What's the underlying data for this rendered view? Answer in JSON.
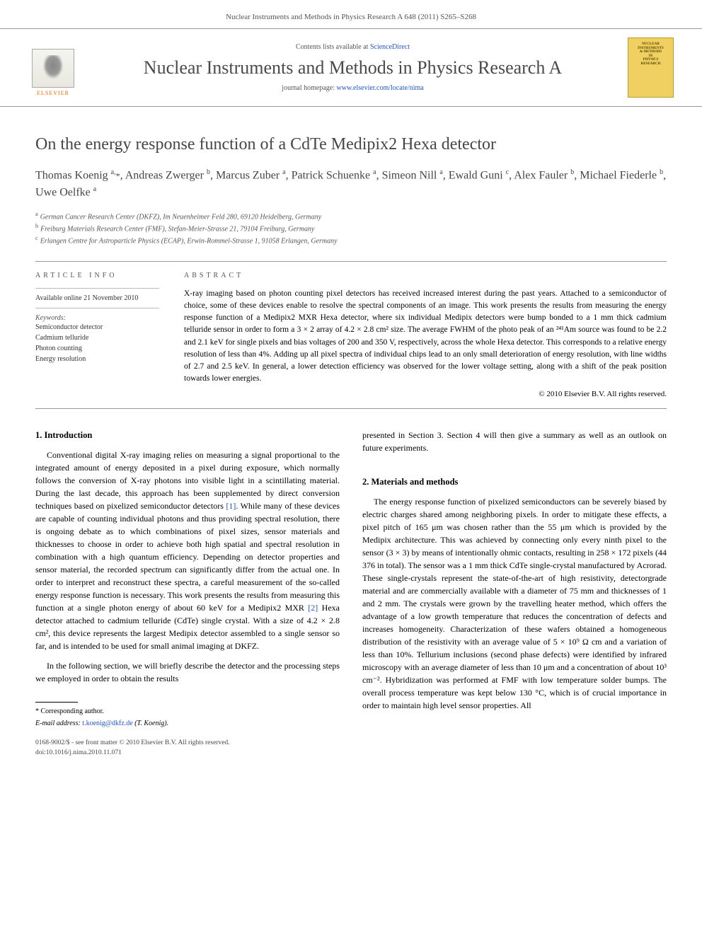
{
  "header": {
    "running_head": "Nuclear Instruments and Methods in Physics Research A 648 (2011) S265–S268"
  },
  "banner": {
    "contents_prefix": "Contents lists available at ",
    "contents_link": "ScienceDirect",
    "journal_name": "Nuclear Instruments and Methods in Physics Research A",
    "homepage_prefix": "journal homepage: ",
    "homepage_link": "www.elsevier.com/locate/nima",
    "publisher": "ELSEVIER",
    "cover_lines": [
      "NUCLEAR",
      "INSTRUMENTS",
      "& METHODS",
      "IN",
      "PHYSICS",
      "RESEARCH"
    ]
  },
  "article": {
    "title": "On the energy response function of a CdTe Medipix2 Hexa detector",
    "authors_html": "Thomas Koenig <sup>a,</sup><span class='star'>*</span>, Andreas Zwerger <sup>b</sup>, Marcus Zuber <sup>a</sup>, Patrick Schuenke <sup>a</sup>, Simeon Nill <sup>a</sup>, Ewald Guni <sup>c</sup>, Alex Fauler <sup>b</sup>, Michael Fiederle <sup>b</sup>, Uwe Oelfke <sup>a</sup>",
    "affiliations": [
      {
        "sup": "a",
        "text": "German Cancer Research Center (DKFZ), Im Neuenheimer Feld 280, 69120 Heidelberg, Germany"
      },
      {
        "sup": "b",
        "text": "Freiburg Materials Research Center (FMF), Stefan-Meier-Strasse 21, 79104 Freiburg, Germany"
      },
      {
        "sup": "c",
        "text": "Erlangen Centre for Astroparticle Physics (ECAP), Erwin-Rommel-Strasse 1, 91058 Erlangen, Germany"
      }
    ]
  },
  "info": {
    "heading": "ARTICLE INFO",
    "available": "Available online 21 November 2010",
    "keywords_label": "Keywords:",
    "keywords": [
      "Semiconductor detector",
      "Cadmium telluride",
      "Photon counting",
      "Energy resolution"
    ]
  },
  "abstract": {
    "heading": "ABSTRACT",
    "text": "X-ray imaging based on photon counting pixel detectors has received increased interest during the past years. Attached to a semiconductor of choice, some of these devices enable to resolve the spectral components of an image. This work presents the results from measuring the energy response function of a Medipix2 MXR Hexa detector, where six individual Medipix detectors were bump bonded to a 1 mm thick cadmium telluride sensor in order to form a 3 × 2 array of 4.2 × 2.8 cm² size. The average FWHM of the photo peak of an ²⁴¹Am source was found to be 2.2 and 2.1 keV for single pixels and bias voltages of 200 and 350 V, respectively, across the whole Hexa detector. This corresponds to a relative energy resolution of less than 4%. Adding up all pixel spectra of individual chips lead to an only small deterioration of energy resolution, with line widths of 2.7 and 2.5 keV. In general, a lower detection efficiency was observed for the lower voltage setting, along with a shift of the peak position towards lower energies.",
    "copyright": "© 2010 Elsevier B.V. All rights reserved."
  },
  "sections": {
    "s1_heading": "1.  Introduction",
    "s1_p1": "Conventional digital X-ray imaging relies on measuring a signal proportional to the integrated amount of energy deposited in a pixel during exposure, which normally follows the conversion of X-ray photons into visible light in a scintillating material. During the last decade, this approach has been supplemented by direct conversion techniques based on pixelized semiconductor detectors [1]. While many of these devices are capable of counting individual photons and thus providing spectral resolution, there is ongoing debate as to which combinations of pixel sizes, sensor materials and thicknesses to choose in order to achieve both high spatial and spectral resolution in combination with a high quantum efficiency. Depending on detector properties and sensor material, the recorded spectrum can significantly differ from the actual one. In order to interpret and reconstruct these spectra, a careful measurement of the so-called energy response function is necessary. This work presents the results from measuring this function at a single photon energy of about 60 keV for a Medipix2 MXR [2] Hexa detector attached to cadmium telluride (CdTe) single crystal. With a size of 4.2 × 2.8 cm², this device represents the largest Medipix detector assembled to a single sensor so far, and is intended to be used for small animal imaging at DKFZ.",
    "s1_p2": "In the following section, we will briefly describe the detector and the processing steps we employed in order to obtain the results",
    "s1_p3_continuation": "presented in Section 3. Section 4 will then give a summary as well as an outlook on future experiments.",
    "s2_heading": "2.  Materials and methods",
    "s2_p1": "The energy response function of pixelized semiconductors can be severely biased by electric charges shared among neighboring pixels. In order to mitigate these effects, a pixel pitch of 165 μm was chosen rather than the 55 μm which is provided by the Medipix architecture. This was achieved by connecting only every ninth pixel to the sensor (3 × 3) by means of intentionally ohmic contacts, resulting in 258 × 172 pixels (44 376 in total). The sensor was a 1 mm thick CdTe single-crystal manufactured by Acrorad. These single-crystals represent the state-of-the-art of high resistivity, detectorgrade material and are commercially available with a diameter of 75 mm and thicknesses of 1 and 2 mm. The crystals were grown by the travelling heater method, which offers the advantage of a low growth temperature that reduces the concentration of defects and increases homogeneity. Characterization of these wafers obtained a homogeneous distribution of the resistivity with an average value of 5 × 10⁹ Ω cm and a variation of less than 10%. Tellurium inclusions (second phase defects) were identified by infrared microscopy with an average diameter of less than 10 μm and a concentration of about 10³ cm⁻². Hybridization was performed at FMF with low temperature solder bumps. The overall process temperature was kept below 130 °C, which is of crucial importance in order to maintain high level sensor properties. All"
  },
  "footnote": {
    "corresponding": "* Corresponding author.",
    "email_label": "E-mail address: ",
    "email": "t.koenig@dkfz.de",
    "email_who": " (T. Koenig)."
  },
  "bottom": {
    "line1": "0168-9002/$ - see front matter © 2010 Elsevier B.V. All rights reserved.",
    "line2": "doi:10.1016/j.nima.2010.11.071"
  },
  "colors": {
    "link": "#2255cc",
    "text": "#000000",
    "muted": "#555555",
    "elsevier_orange": "#ff6600",
    "cover_bg": "#f0d060"
  }
}
